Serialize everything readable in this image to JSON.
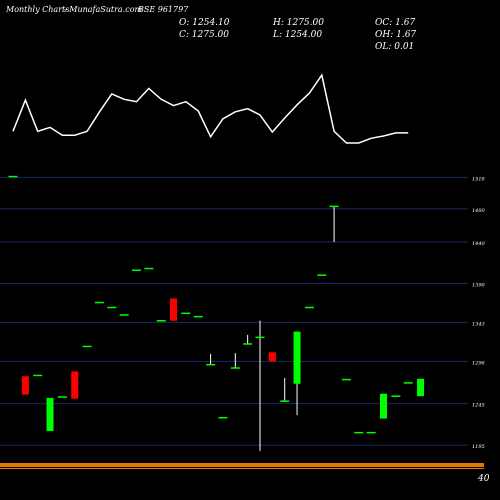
{
  "header": {
    "title": "Monthly Charts",
    "source": "- MunafaSutra.com",
    "symbol": "BSE 961797"
  },
  "ohlc": {
    "o": "O: 1254.10",
    "h": "H: 1275.00",
    "c": "C: 1275.00",
    "l": "L: 1254.00",
    "oc": "OC: 1.67",
    "oh": "OH: 1.67",
    "ol": "OL: 0.01"
  },
  "colors": {
    "background": "#000000",
    "bull": "#00ff00",
    "bear": "#ff0000",
    "line": "#ffffff",
    "grid": "#1a2a6a",
    "base_band": "#e07b00"
  },
  "axis": {
    "tick_labels": [
      "1518",
      "1480",
      "1440",
      "1390",
      "1343",
      "1296",
      "1245",
      "1195"
    ],
    "bottom_label": "40"
  },
  "chart_data": {
    "type": "candlestick",
    "title": "",
    "y_ticks": [
      1518,
      1480,
      1440,
      1390,
      1343,
      1296,
      1245,
      1195
    ],
    "ylim": [
      1177,
      1539
    ],
    "grid": true,
    "candles": [
      {
        "i": 0,
        "o": 1519,
        "h": 1519,
        "l": 1519,
        "c": 1519
      },
      {
        "i": 1,
        "o": 1278,
        "h": 1278,
        "l": 1256,
        "c": 1256
      },
      {
        "i": 2,
        "o": 1279,
        "h": 1279,
        "l": 1279,
        "c": 1279
      },
      {
        "i": 3,
        "o": 1212,
        "h": 1252,
        "l": 1212,
        "c": 1252
      },
      {
        "i": 4,
        "o": 1253,
        "h": 1253,
        "l": 1253,
        "c": 1253
      },
      {
        "i": 5,
        "o": 1284,
        "h": 1284,
        "l": 1251,
        "c": 1251
      },
      {
        "i": 6,
        "o": 1314,
        "h": 1314,
        "l": 1314,
        "c": 1314
      },
      {
        "i": 7,
        "o": 1367,
        "h": 1367,
        "l": 1367,
        "c": 1367
      },
      {
        "i": 8,
        "o": 1361,
        "h": 1361,
        "l": 1361,
        "c": 1361
      },
      {
        "i": 9,
        "o": 1352,
        "h": 1352,
        "l": 1352,
        "c": 1352
      },
      {
        "i": 10,
        "o": 1406,
        "h": 1406,
        "l": 1406,
        "c": 1406
      },
      {
        "i": 11,
        "o": 1408,
        "h": 1408,
        "l": 1408,
        "c": 1408
      },
      {
        "i": 12,
        "o": 1345,
        "h": 1345,
        "l": 1345,
        "c": 1345
      },
      {
        "i": 13,
        "o": 1372,
        "h": 1372,
        "l": 1345,
        "c": 1345
      },
      {
        "i": 14,
        "o": 1354,
        "h": 1354,
        "l": 1354,
        "c": 1354
      },
      {
        "i": 15,
        "o": 1350,
        "h": 1350,
        "l": 1350,
        "c": 1350
      },
      {
        "i": 16,
        "o": 1292,
        "h": 1305,
        "l": 1292,
        "c": 1292
      },
      {
        "i": 17,
        "o": 1228,
        "h": 1228,
        "l": 1228,
        "c": 1228
      },
      {
        "i": 18,
        "o": 1288,
        "h": 1306,
        "l": 1288,
        "c": 1288
      },
      {
        "i": 19,
        "o": 1317,
        "h": 1328,
        "l": 1317,
        "c": 1317
      },
      {
        "i": 20,
        "o": 1325,
        "h": 1345,
        "l": 1188,
        "c": 1325
      },
      {
        "i": 21,
        "o": 1307,
        "h": 1307,
        "l": 1296,
        "c": 1296
      },
      {
        "i": 22,
        "o": 1248,
        "h": 1276,
        "l": 1248,
        "c": 1248
      },
      {
        "i": 23,
        "o": 1269,
        "h": 1332,
        "l": 1231,
        "c": 1332
      },
      {
        "i": 24,
        "o": 1361,
        "h": 1361,
        "l": 1361,
        "c": 1361
      },
      {
        "i": 25,
        "o": 1400,
        "h": 1400,
        "l": 1400,
        "c": 1400
      },
      {
        "i": 26,
        "o": 1483,
        "h": 1483,
        "l": 1440,
        "c": 1483
      },
      {
        "i": 27,
        "o": 1274,
        "h": 1274,
        "l": 1274,
        "c": 1274
      },
      {
        "i": 28,
        "o": 1210,
        "h": 1210,
        "l": 1210,
        "c": 1210
      },
      {
        "i": 29,
        "o": 1210,
        "h": 1210,
        "l": 1210,
        "c": 1210
      },
      {
        "i": 30,
        "o": 1227,
        "h": 1257,
        "l": 1227,
        "c": 1257
      },
      {
        "i": 31,
        "o": 1254,
        "h": 1254,
        "l": 1254,
        "c": 1254
      },
      {
        "i": 32,
        "o": 1270,
        "h": 1270,
        "l": 1270,
        "c": 1270
      },
      {
        "i": 33,
        "o": 1254.1,
        "h": 1275,
        "l": 1254,
        "c": 1275
      }
    ],
    "overlay_line": [
      0.15,
      0.55,
      0.15,
      0.2,
      0.1,
      0.1,
      0.15,
      0.4,
      0.63,
      0.56,
      0.53,
      0.7,
      0.56,
      0.48,
      0.53,
      0.41,
      0.08,
      0.31,
      0.4,
      0.44,
      0.36,
      0.14,
      0.32,
      0.49,
      0.64,
      0.87,
      0.15,
      0.0,
      0.0,
      0.06,
      0.09,
      0.13,
      0.13
    ]
  }
}
